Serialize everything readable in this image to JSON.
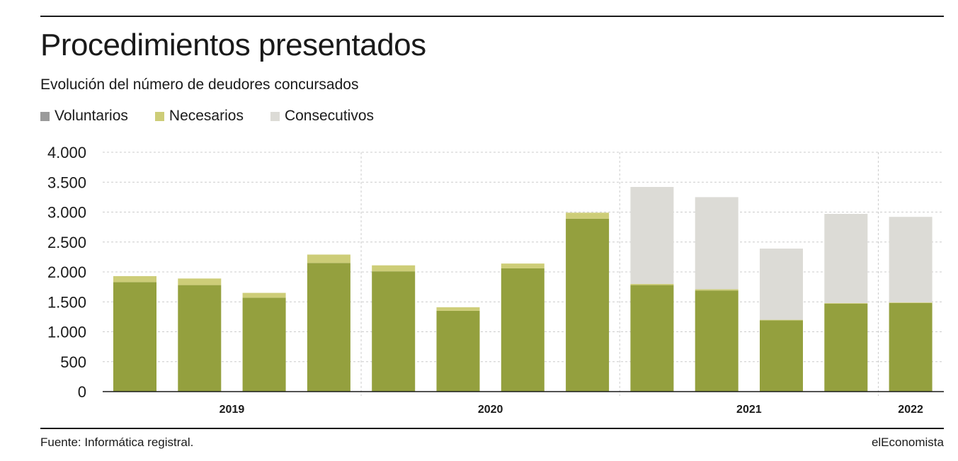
{
  "header": {
    "title": "Procedimientos presentados",
    "subtitle": "Evolución del número de deudores concursados"
  },
  "footer": {
    "source": "Fuente: Informática registral.",
    "brand": "elEconomista"
  },
  "colors": {
    "voluntarios": "#94a03e",
    "necesarios": "#cdcd78",
    "consecutivos": "#dcdbd6",
    "legend_voluntarios": "#9a9a9a",
    "axis": "#1a1a1a",
    "grid": "#cccccc"
  },
  "chart_data": {
    "type": "bar",
    "stacked": true,
    "title": "Procedimientos presentados",
    "subtitle": "Evolución del número de deudores concursados",
    "xlabel": "",
    "ylabel": "",
    "ylim": [
      0,
      4000
    ],
    "yticks": [
      0,
      500,
      1000,
      1500,
      2000,
      2500,
      3000,
      3500,
      4000
    ],
    "ytick_labels": [
      "0",
      "500",
      "1.000",
      "1.500",
      "2.000",
      "2.500",
      "3.000",
      "3.500",
      "4.000"
    ],
    "grid": true,
    "legend_position": "top-left",
    "groups": [
      {
        "label": "2019",
        "count": 4
      },
      {
        "label": "2020",
        "count": 4
      },
      {
        "label": "2021",
        "count": 4
      },
      {
        "label": "2022",
        "count": 1
      }
    ],
    "series": [
      {
        "name": "Voluntarios",
        "values": [
          1830,
          1780,
          1570,
          2150,
          2010,
          1350,
          2060,
          2890,
          1780,
          1690,
          1190,
          1470,
          1480
        ]
      },
      {
        "name": "Necesarios",
        "values": [
          100,
          110,
          80,
          140,
          100,
          60,
          80,
          100,
          20,
          20,
          10,
          10,
          10
        ]
      },
      {
        "name": "Consecutivos",
        "values": [
          0,
          0,
          0,
          0,
          0,
          0,
          0,
          0,
          1620,
          1540,
          1190,
          1490,
          1430
        ]
      }
    ]
  }
}
